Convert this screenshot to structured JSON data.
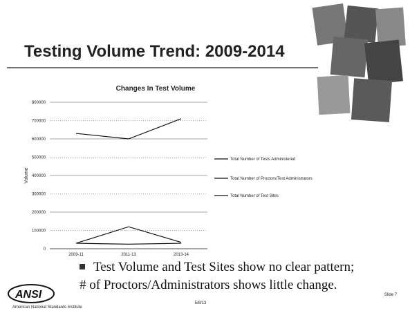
{
  "slide": {
    "title": "Testing Volume Trend: 2009-2014",
    "bullets": [
      "Test Volume and Test Sites show no clear pattern;",
      "# of Proctors/Administrators shows little change."
    ],
    "logo": "ANSI",
    "logo_sub": "American National Standards Institute",
    "date": "5/8/13",
    "slide_number": "Slide 7"
  },
  "chart_data": {
    "type": "line",
    "title": "Changes In Test Volume",
    "y_label": "Volume",
    "categories": [
      "2009-11",
      "2011-13",
      "2013-14"
    ],
    "series": [
      {
        "name": "Total Number of Tests Administered",
        "color": "#111111",
        "values": [
          630000,
          600000,
          710000
        ]
      },
      {
        "name": "Total Number of Proctors/Test Administrators",
        "color": "#111111",
        "values": [
          30000,
          25000,
          30000
        ]
      },
      {
        "name": "Total Number of Test Sites",
        "color": "#111111",
        "values": [
          30000,
          120000,
          35000
        ]
      }
    ],
    "ylim": [
      0,
      800000
    ],
    "yticks": [
      0,
      100000,
      200000,
      300000,
      400000,
      500000,
      600000,
      700000,
      800000
    ],
    "grid": true
  }
}
